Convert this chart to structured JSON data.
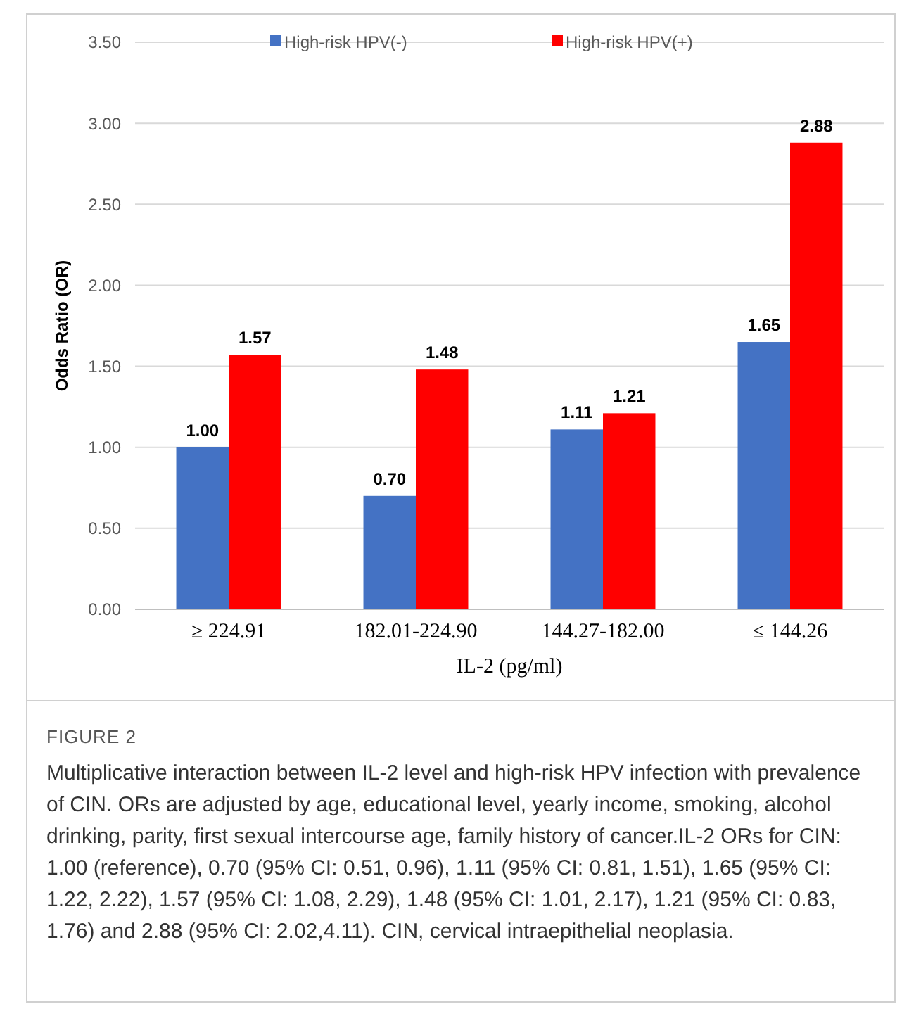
{
  "chart_data": {
    "type": "bar",
    "xlabel": "IL-2 (pg/ml)",
    "ylabel": "Odds Ratio (OR)",
    "categories": [
      "≥ 224.91",
      "182.01-224.90",
      "144.27-182.00",
      "≤ 144.26"
    ],
    "series": [
      {
        "name": "High-risk HPV(-)",
        "color": "#4472c4",
        "values": [
          1.0,
          0.7,
          1.11,
          1.65
        ],
        "value_labels": [
          "1.00",
          "0.70",
          "1.11",
          "1.65"
        ]
      },
      {
        "name": "High-risk HPV(+)",
        "color": "#ff0000",
        "values": [
          1.57,
          1.48,
          1.21,
          2.88
        ],
        "value_labels": [
          "1.57",
          "1.48",
          "1.21",
          "2.88"
        ]
      }
    ],
    "ylim": [
      0,
      3.5
    ],
    "yticks": [
      {
        "value": 0,
        "label": "0.00"
      },
      {
        "value": 0.5,
        "label": "0.50"
      },
      {
        "value": 1,
        "label": "1.00"
      },
      {
        "value": 1.5,
        "label": "1.50"
      },
      {
        "value": 2,
        "label": "2.00"
      },
      {
        "value": 2.5,
        "label": "2.50"
      },
      {
        "value": 3,
        "label": "3.00"
      },
      {
        "value": 3.5,
        "label": "3.50"
      }
    ],
    "grid": "y",
    "legend": "top",
    "annotations": [
      "FIGURE 2",
      "Multiplicative interaction between IL-2 level and high-risk HPV infection with prevalence of CIN. ORs are adjusted by age, educational level, yearly income, smoking, alcohol drinking, parity, first sexual intercourse age, family history of cancer.IL-2 ORs for CIN: 1.00 (reference), 0.70 (95% CI: 0.51, 0.96), 1.11 (95% CI: 0.81, 1.51), 1.65 (95% CI: 1.22, 2.22), 1.57 (95% CI: 1.08, 2.29), 1.48 (95% CI: 1.01, 2.17), 1.21 (95% CI: 0.83, 1.76) and 2.88 (95% CI: 2.02,4.11). CIN, cervical intraepithelial neoplasia."
    ]
  }
}
